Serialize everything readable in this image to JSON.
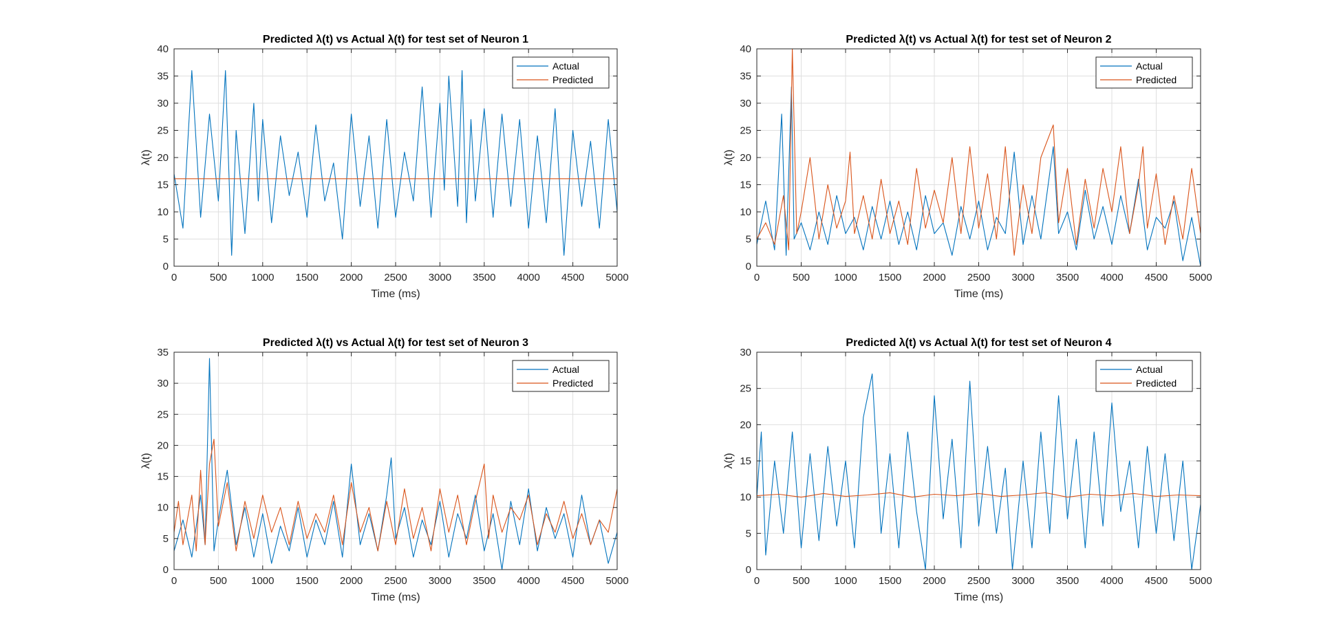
{
  "colors": {
    "actual": "#0072BD",
    "predicted": "#D95319",
    "grid": "#dfdfdf",
    "axis": "#262626"
  },
  "chart_data": [
    {
      "type": "line",
      "title": "Predicted λ(t) vs Actual λ(t) for test set of Neuron 1",
      "xlabel": "Time (ms)",
      "ylabel": "λ(t)",
      "xlim": [
        0,
        5000
      ],
      "ylim": [
        0,
        40
      ],
      "xticks": [
        "0",
        "500",
        "1000",
        "1500",
        "2000",
        "2500",
        "3000",
        "3500",
        "4000",
        "4500",
        "5000"
      ],
      "yticks": [
        "0",
        "5",
        "10",
        "15",
        "20",
        "25",
        "30",
        "35",
        "40"
      ],
      "grid": true,
      "legend": "top-right",
      "series": [
        {
          "name": "Actual",
          "color": "#0072BD",
          "x": [
            0,
            100,
            200,
            300,
            400,
            500,
            580,
            650,
            700,
            800,
            900,
            950,
            1000,
            1100,
            1200,
            1300,
            1400,
            1500,
            1600,
            1700,
            1800,
            1900,
            2000,
            2100,
            2200,
            2300,
            2400,
            2500,
            2600,
            2700,
            2800,
            2900,
            3000,
            3050,
            3100,
            3200,
            3250,
            3300,
            3350,
            3400,
            3500,
            3600,
            3700,
            3800,
            3900,
            4000,
            4100,
            4200,
            4300,
            4400,
            4500,
            4600,
            4700,
            4800,
            4900,
            5000
          ],
          "y": [
            17,
            7,
            36,
            9,
            28,
            12,
            36,
            2,
            25,
            6,
            30,
            12,
            27,
            8,
            24,
            13,
            21,
            9,
            26,
            12,
            19,
            5,
            28,
            11,
            24,
            7,
            27,
            9,
            21,
            12,
            33,
            9,
            30,
            14,
            35,
            11,
            36,
            8,
            27,
            12,
            29,
            9,
            28,
            11,
            27,
            7,
            24,
            8,
            29,
            2,
            25,
            11,
            23,
            7,
            27,
            10
          ]
        },
        {
          "name": "Predicted",
          "color": "#D95319",
          "x": [
            0,
            5000
          ],
          "y": [
            16.1,
            16.1
          ]
        }
      ]
    },
    {
      "type": "line",
      "title": "Predicted λ(t) vs Actual λ(t) for test set of Neuron 2",
      "xlabel": "Time (ms)",
      "ylabel": "λ(t)",
      "xlim": [
        0,
        5000
      ],
      "ylim": [
        0,
        40
      ],
      "xticks": [
        "0",
        "500",
        "1000",
        "1500",
        "2000",
        "2500",
        "3000",
        "3500",
        "4000",
        "4500",
        "5000"
      ],
      "yticks": [
        "0",
        "5",
        "10",
        "15",
        "20",
        "25",
        "30",
        "35",
        "40"
      ],
      "grid": true,
      "legend": "top-right",
      "series": [
        {
          "name": "Actual",
          "color": "#0072BD",
          "x": [
            0,
            100,
            200,
            280,
            330,
            390,
            420,
            500,
            600,
            700,
            800,
            900,
            1000,
            1100,
            1200,
            1300,
            1400,
            1500,
            1600,
            1700,
            1800,
            1900,
            2000,
            2100,
            2200,
            2300,
            2400,
            2500,
            2600,
            2700,
            2800,
            2900,
            3000,
            3100,
            3200,
            3340,
            3400,
            3500,
            3600,
            3700,
            3800,
            3900,
            4000,
            4100,
            4200,
            4300,
            4400,
            4500,
            4600,
            4700,
            4800,
            4900,
            5000
          ],
          "y": [
            4,
            12,
            3,
            28,
            2,
            33,
            5,
            8,
            3,
            10,
            4,
            13,
            6,
            9,
            3,
            11,
            5,
            12,
            4,
            10,
            3,
            13,
            6,
            8,
            2,
            11,
            5,
            12,
            3,
            9,
            6,
            21,
            4,
            13,
            5,
            22,
            6,
            10,
            3,
            14,
            5,
            11,
            4,
            13,
            6,
            16,
            3,
            9,
            7,
            12,
            1,
            9,
            0
          ]
        },
        {
          "name": "Predicted",
          "color": "#D95319",
          "x": [
            0,
            100,
            200,
            300,
            360,
            400,
            450,
            500,
            600,
            700,
            800,
            900,
            1000,
            1050,
            1100,
            1200,
            1300,
            1400,
            1500,
            1600,
            1700,
            1800,
            1900,
            2000,
            2100,
            2200,
            2300,
            2400,
            2500,
            2600,
            2700,
            2800,
            2900,
            3000,
            3100,
            3200,
            3340,
            3400,
            3500,
            3600,
            3700,
            3800,
            3900,
            4000,
            4100,
            4200,
            4300,
            4350,
            4400,
            4500,
            4600,
            4700,
            4800,
            4900,
            5000
          ],
          "y": [
            5,
            8,
            4,
            13,
            3,
            40,
            6,
            10,
            20,
            5,
            15,
            7,
            12,
            21,
            6,
            13,
            5,
            16,
            6,
            12,
            4,
            18,
            7,
            14,
            8,
            20,
            6,
            22,
            7,
            17,
            5,
            22,
            2,
            15,
            6,
            20,
            26,
            8,
            18,
            4,
            16,
            7,
            18,
            10,
            22,
            6,
            15,
            22,
            7,
            17,
            4,
            13,
            5,
            18,
            6
          ]
        }
      ]
    },
    {
      "type": "line",
      "title": "Predicted λ(t) vs Actual λ(t) for test set of Neuron 3",
      "xlabel": "Time (ms)",
      "ylabel": "λ(t)",
      "xlim": [
        0,
        5000
      ],
      "ylim": [
        0,
        35
      ],
      "xticks": [
        "0",
        "500",
        "1000",
        "1500",
        "2000",
        "2500",
        "3000",
        "3500",
        "4000",
        "4500",
        "5000"
      ],
      "yticks": [
        "0",
        "5",
        "10",
        "15",
        "20",
        "25",
        "30",
        "35"
      ],
      "grid": true,
      "legend": "top-right",
      "series": [
        {
          "name": "Actual",
          "color": "#0072BD",
          "x": [
            0,
            100,
            200,
            300,
            350,
            400,
            450,
            500,
            600,
            700,
            800,
            900,
            1000,
            1100,
            1200,
            1300,
            1400,
            1500,
            1600,
            1700,
            1800,
            1900,
            2000,
            2100,
            2200,
            2300,
            2400,
            2450,
            2500,
            2600,
            2700,
            2800,
            2900,
            3000,
            3100,
            3200,
            3300,
            3400,
            3500,
            3600,
            3700,
            3800,
            3900,
            4000,
            4100,
            4200,
            4300,
            4400,
            4500,
            4600,
            4700,
            4800,
            4900,
            5000
          ],
          "y": [
            3,
            8,
            2,
            12,
            4,
            34,
            3,
            8,
            16,
            4,
            10,
            2,
            9,
            1,
            7,
            3,
            10,
            2,
            8,
            4,
            11,
            2,
            17,
            4,
            9,
            3,
            12,
            18,
            5,
            10,
            2,
            8,
            4,
            11,
            2,
            9,
            5,
            12,
            3,
            9,
            0,
            11,
            4,
            13,
            3,
            10,
            5,
            9,
            2,
            12,
            4,
            8,
            1,
            6
          ]
        },
        {
          "name": "Predicted",
          "color": "#D95319",
          "x": [
            0,
            50,
            100,
            200,
            250,
            300,
            350,
            400,
            450,
            500,
            600,
            700,
            800,
            900,
            1000,
            1100,
            1200,
            1300,
            1400,
            1500,
            1600,
            1700,
            1800,
            1900,
            2000,
            2100,
            2200,
            2300,
            2400,
            2500,
            2600,
            2700,
            2800,
            2900,
            3000,
            3100,
            3200,
            3300,
            3400,
            3500,
            3550,
            3600,
            3700,
            3800,
            3900,
            4000,
            4100,
            4200,
            4300,
            4400,
            4500,
            4600,
            4700,
            4800,
            4900,
            5000
          ],
          "y": [
            6,
            11,
            4,
            12,
            3,
            16,
            4,
            17,
            21,
            7,
            14,
            3,
            11,
            5,
            12,
            6,
            10,
            4,
            11,
            5,
            9,
            6,
            12,
            4,
            14,
            6,
            10,
            3,
            11,
            4,
            13,
            5,
            10,
            3,
            13,
            6,
            12,
            4,
            11,
            17,
            5,
            12,
            6,
            10,
            8,
            12,
            4,
            9,
            6,
            11,
            5,
            9,
            4,
            8,
            6,
            13
          ]
        }
      ]
    },
    {
      "type": "line",
      "title": "Predicted λ(t) vs Actual λ(t) for test set of Neuron 4",
      "xlabel": "Time (ms)",
      "ylabel": "λ(t)",
      "xlim": [
        0,
        5000
      ],
      "ylim": [
        0,
        30
      ],
      "xticks": [
        "0",
        "500",
        "1000",
        "1500",
        "2000",
        "2500",
        "3000",
        "3500",
        "4000",
        "4500",
        "5000"
      ],
      "yticks": [
        "0",
        "5",
        "10",
        "15",
        "20",
        "25",
        "30"
      ],
      "grid": true,
      "legend": "top-right",
      "series": [
        {
          "name": "Actual",
          "color": "#0072BD",
          "x": [
            0,
            50,
            100,
            200,
            300,
            400,
            500,
            600,
            700,
            800,
            900,
            1000,
            1100,
            1200,
            1300,
            1400,
            1500,
            1600,
            1700,
            1800,
            1900,
            2000,
            2100,
            2200,
            2300,
            2400,
            2500,
            2600,
            2700,
            2800,
            2880,
            3000,
            3100,
            3200,
            3300,
            3400,
            3500,
            3600,
            3700,
            3800,
            3900,
            4000,
            4100,
            4200,
            4300,
            4400,
            4500,
            4600,
            4700,
            4800,
            4900,
            5000
          ],
          "y": [
            10,
            19,
            2,
            15,
            5,
            19,
            3,
            16,
            4,
            17,
            6,
            15,
            3,
            21,
            27,
            5,
            16,
            3,
            19,
            8,
            0,
            24,
            7,
            18,
            3,
            26,
            6,
            17,
            5,
            14,
            0,
            15,
            3,
            19,
            5,
            24,
            7,
            18,
            3,
            19,
            6,
            23,
            8,
            15,
            3,
            17,
            5,
            16,
            4,
            15,
            0,
            9
          ]
        },
        {
          "name": "Predicted",
          "color": "#D95319",
          "x": [
            0,
            250,
            500,
            750,
            1000,
            1250,
            1500,
            1750,
            2000,
            2250,
            2500,
            2750,
            3000,
            3250,
            3500,
            3750,
            4000,
            4250,
            4500,
            4750,
            5000
          ],
          "y": [
            10.2,
            10.4,
            10,
            10.5,
            10.1,
            10.3,
            10.6,
            10,
            10.4,
            10.2,
            10.5,
            10.1,
            10.3,
            10.6,
            10,
            10.4,
            10.2,
            10.5,
            10.1,
            10.3,
            10.2
          ]
        }
      ]
    }
  ]
}
